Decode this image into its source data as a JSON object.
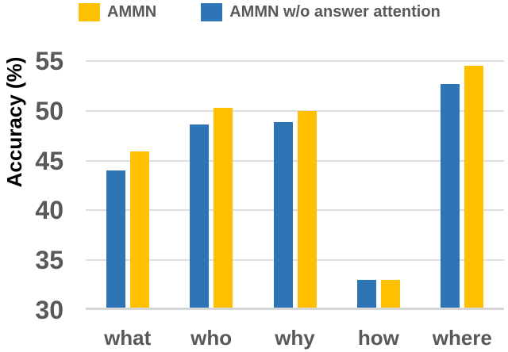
{
  "legend": {
    "items": [
      {
        "label": "AMMN",
        "color": "#FFC000"
      },
      {
        "label": "AMMN w/o answer attention",
        "color": "#2E75B6"
      }
    ]
  },
  "chart_data": {
    "type": "bar",
    "title": "",
    "xlabel": "",
    "ylabel": "Accuracy (%)",
    "categories": [
      "what",
      "who",
      "why",
      "how",
      "where"
    ],
    "series": [
      {
        "id": "ammn-wo-answer-attention",
        "name": "AMMN w/o answer attention",
        "color": "#2E75B6",
        "values": [
          44.0,
          48.6,
          48.9,
          33.0,
          52.7
        ]
      },
      {
        "id": "ammn",
        "name": "AMMN",
        "color": "#FFC000",
        "values": [
          45.9,
          50.3,
          50.0,
          33.0,
          54.5
        ]
      }
    ],
    "ylim": [
      30,
      55
    ],
    "yticks": [
      55,
      50,
      45,
      40,
      35,
      30
    ],
    "grid": true,
    "legend_position": "top",
    "colors": {
      "tick_text": "#595959",
      "axis_title_text": "#000000",
      "gridline": "#DEDEDE",
      "axis_line": "#D6D6D6",
      "background": "#FFFFFF"
    }
  }
}
